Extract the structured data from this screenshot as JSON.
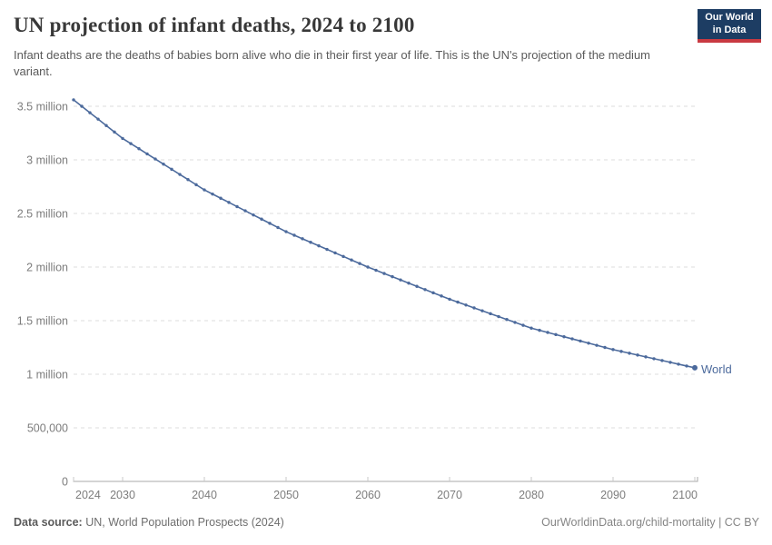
{
  "header": {
    "title": "UN projection of infant deaths, 2024 to 2100",
    "subtitle": "Infant deaths are the deaths of babies born alive who die in their first year of life. This is the UN's projection of the medium variant.",
    "logo": {
      "line1": "Our World",
      "line2": "in Data",
      "bg_color": "#1d3d63",
      "accent_color": "#c93a42"
    }
  },
  "chart_data": {
    "type": "line",
    "title": "UN projection of infant deaths, 2024 to 2100",
    "xlabel": "",
    "ylabel": "",
    "values_unit": "millions of infant deaths",
    "xlim": [
      2024,
      2100
    ],
    "ylim": [
      0,
      3.5
    ],
    "grid": "horizontal-dashed",
    "legend_position": "end-of-line",
    "x": [
      2024,
      2025,
      2026,
      2027,
      2028,
      2029,
      2030,
      2031,
      2032,
      2033,
      2034,
      2035,
      2036,
      2037,
      2038,
      2039,
      2040,
      2041,
      2042,
      2043,
      2044,
      2045,
      2046,
      2047,
      2048,
      2049,
      2050,
      2051,
      2052,
      2053,
      2054,
      2055,
      2056,
      2057,
      2058,
      2059,
      2060,
      2061,
      2062,
      2063,
      2064,
      2065,
      2066,
      2067,
      2068,
      2069,
      2070,
      2071,
      2072,
      2073,
      2074,
      2075,
      2076,
      2077,
      2078,
      2079,
      2080,
      2081,
      2082,
      2083,
      2084,
      2085,
      2086,
      2087,
      2088,
      2089,
      2090,
      2091,
      2092,
      2093,
      2094,
      2095,
      2096,
      2097,
      2098,
      2099,
      2100
    ],
    "series": [
      {
        "name": "World",
        "color": "#4c6a9c",
        "values": [
          3.56,
          3.5,
          3.44,
          3.38,
          3.32,
          3.26,
          3.2,
          3.152,
          3.104,
          3.056,
          3.008,
          2.96,
          2.912,
          2.864,
          2.816,
          2.768,
          2.72,
          2.681,
          2.642,
          2.603,
          2.564,
          2.525,
          2.486,
          2.447,
          2.408,
          2.369,
          2.33,
          2.297,
          2.264,
          2.231,
          2.198,
          2.165,
          2.132,
          2.099,
          2.066,
          2.033,
          2.0,
          1.97,
          1.94,
          1.91,
          1.88,
          1.85,
          1.82,
          1.79,
          1.76,
          1.73,
          1.7,
          1.673,
          1.646,
          1.619,
          1.592,
          1.565,
          1.538,
          1.511,
          1.484,
          1.457,
          1.43,
          1.41,
          1.39,
          1.37,
          1.35,
          1.33,
          1.31,
          1.29,
          1.27,
          1.25,
          1.23,
          1.213,
          1.196,
          1.179,
          1.162,
          1.145,
          1.128,
          1.111,
          1.094,
          1.077,
          1.06
        ]
      }
    ],
    "y_ticks": [
      {
        "value": 0,
        "label": "0"
      },
      {
        "value": 0.5,
        "label": "500,000"
      },
      {
        "value": 1,
        "label": "1 million"
      },
      {
        "value": 1.5,
        "label": "1.5 million"
      },
      {
        "value": 2,
        "label": "2 million"
      },
      {
        "value": 2.5,
        "label": "2.5 million"
      },
      {
        "value": 3,
        "label": "3 million"
      },
      {
        "value": 3.5,
        "label": "3.5 million"
      }
    ],
    "x_ticks": [
      2024,
      2030,
      2040,
      2050,
      2060,
      2070,
      2080,
      2090,
      2100
    ],
    "colors": {
      "gridline": "#dedede",
      "axis_line": "#a8a8a8",
      "tick_mark": "#c8c8c8",
      "tick_label": "#7d7d7d"
    }
  },
  "footer": {
    "source_label": "Data source:",
    "source_text": " UN, World Population Prospects (2024)",
    "credit": "OurWorldinData.org/child-mortality | CC BY"
  }
}
